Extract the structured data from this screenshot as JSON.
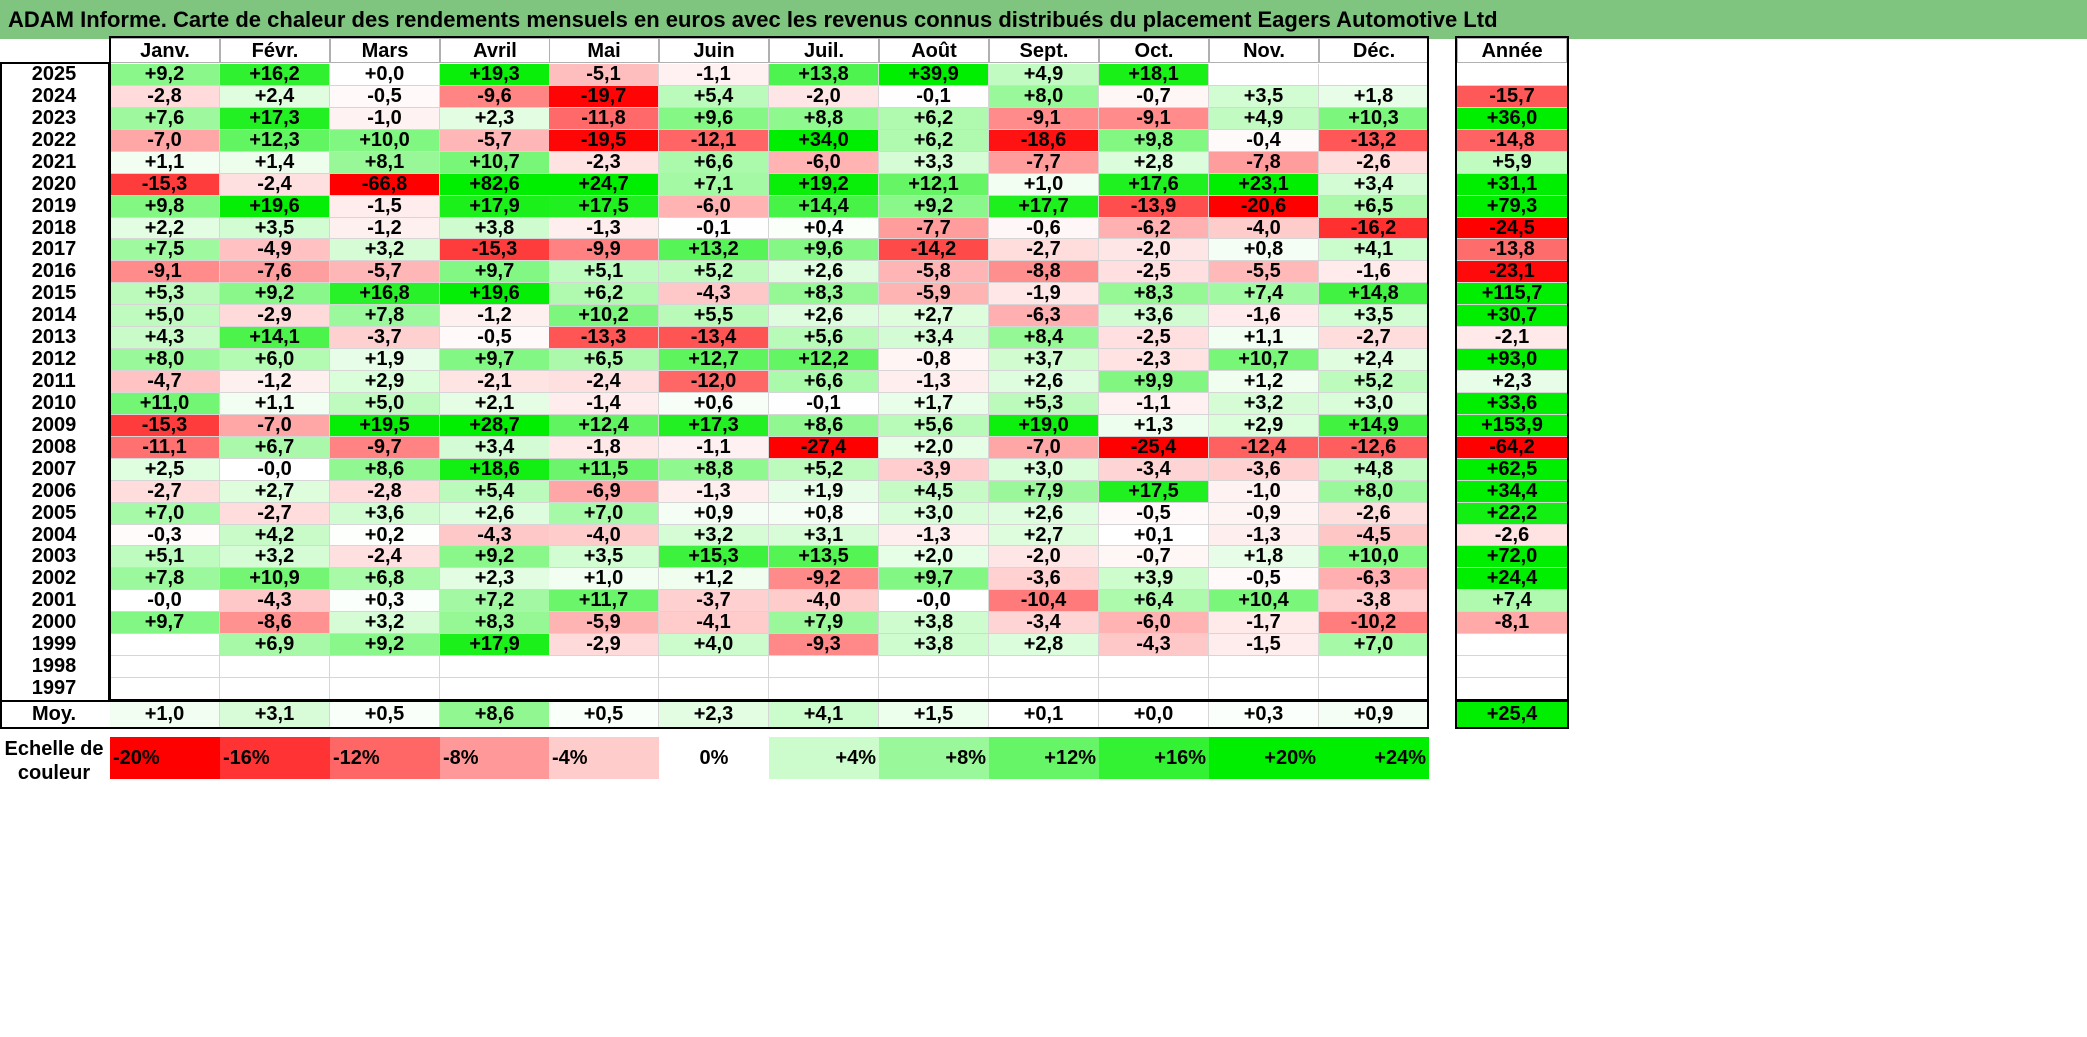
{
  "title": "ADAM Informe. Carte de chaleur des rendements mensuels en euros avec les revenus connus distribués du placement Eagers Automotive Ltd",
  "months": [
    "Janv.",
    "Févr.",
    "Mars",
    "Avril",
    "Mai",
    "Juin",
    "Juil.",
    "Août",
    "Sept.",
    "Oct.",
    "Nov.",
    "Déc."
  ],
  "year_header": "Année",
  "avg_label": "Moy.",
  "scale_label": "Echelle de couleur",
  "colors": {
    "negative_max": "#ff0000",
    "positive_max": "#00ee00",
    "neutral": "#ffffff",
    "title_bg": "#7fc47f"
  },
  "chart_data": {
    "type": "heatmap",
    "title": "ADAM Informe. Carte de chaleur des rendements mensuels en euros avec les revenus connus distribués du placement Eagers Automotive Ltd",
    "columns": [
      "Janv.",
      "Févr.",
      "Mars",
      "Avril",
      "Mai",
      "Juin",
      "Juil.",
      "Août",
      "Sept.",
      "Oct.",
      "Nov.",
      "Déc."
    ],
    "rows": [
      {
        "year": "2025",
        "values": [
          "+9,2",
          "+16,2",
          "+0,0",
          "+19,3",
          "-5,1",
          "-1,1",
          "+13,8",
          "+39,9",
          "+4,9",
          "+18,1",
          "",
          ""
        ],
        "annual": ""
      },
      {
        "year": "2024",
        "values": [
          "-2,8",
          "+2,4",
          "-0,5",
          "-9,6",
          "-19,7",
          "+5,4",
          "-2,0",
          "-0,1",
          "+8,0",
          "-0,7",
          "+3,5",
          "+1,8"
        ],
        "annual": "-15,7"
      },
      {
        "year": "2023",
        "values": [
          "+7,6",
          "+17,3",
          "-1,0",
          "+2,3",
          "-11,8",
          "+9,6",
          "+8,8",
          "+6,2",
          "-9,1",
          "-9,1",
          "+4,9",
          "+10,3"
        ],
        "annual": "+36,0"
      },
      {
        "year": "2022",
        "values": [
          "-7,0",
          "+12,3",
          "+10,0",
          "-5,7",
          "-19,5",
          "-12,1",
          "+34,0",
          "+6,2",
          "-18,6",
          "+9,8",
          "-0,4",
          "-13,2"
        ],
        "annual": "-14,8"
      },
      {
        "year": "2021",
        "values": [
          "+1,1",
          "+1,4",
          "+8,1",
          "+10,7",
          "-2,3",
          "+6,6",
          "-6,0",
          "+3,3",
          "-7,7",
          "+2,8",
          "-7,8",
          "-2,6"
        ],
        "annual": "+5,9"
      },
      {
        "year": "2020",
        "values": [
          "-15,3",
          "-2,4",
          "-66,8",
          "+82,6",
          "+24,7",
          "+7,1",
          "+19,2",
          "+12,1",
          "+1,0",
          "+17,6",
          "+23,1",
          "+3,4"
        ],
        "annual": "+31,1"
      },
      {
        "year": "2019",
        "values": [
          "+9,8",
          "+19,6",
          "-1,5",
          "+17,9",
          "+17,5",
          "-6,0",
          "+14,4",
          "+9,2",
          "+17,7",
          "-13,9",
          "-20,6",
          "+6,5"
        ],
        "annual": "+79,3"
      },
      {
        "year": "2018",
        "values": [
          "+2,2",
          "+3,5",
          "-1,2",
          "+3,8",
          "-1,3",
          "-0,1",
          "+0,4",
          "-7,7",
          "-0,6",
          "-6,2",
          "-4,0",
          "-16,2"
        ],
        "annual": "-24,5"
      },
      {
        "year": "2017",
        "values": [
          "+7,5",
          "-4,9",
          "+3,2",
          "-15,3",
          "-9,9",
          "+13,2",
          "+9,6",
          "-14,2",
          "-2,7",
          "-2,0",
          "+0,8",
          "+4,1"
        ],
        "annual": "-13,8"
      },
      {
        "year": "2016",
        "values": [
          "-9,1",
          "-7,6",
          "-5,7",
          "+9,7",
          "+5,1",
          "+5,2",
          "+2,6",
          "-5,8",
          "-8,8",
          "-2,5",
          "-5,5",
          "-1,6"
        ],
        "annual": "-23,1"
      },
      {
        "year": "2015",
        "values": [
          "+5,3",
          "+9,2",
          "+16,8",
          "+19,6",
          "+6,2",
          "-4,3",
          "+8,3",
          "-5,9",
          "-1,9",
          "+8,3",
          "+7,4",
          "+14,8"
        ],
        "annual": "+115,7"
      },
      {
        "year": "2014",
        "values": [
          "+5,0",
          "-2,9",
          "+7,8",
          "-1,2",
          "+10,2",
          "+5,5",
          "+2,6",
          "+2,7",
          "-6,3",
          "+3,6",
          "-1,6",
          "+3,5"
        ],
        "annual": "+30,7"
      },
      {
        "year": "2013",
        "values": [
          "+4,3",
          "+14,1",
          "-3,7",
          "-0,5",
          "-13,3",
          "-13,4",
          "+5,6",
          "+3,4",
          "+8,4",
          "-2,5",
          "+1,1",
          "-2,7"
        ],
        "annual": "-2,1"
      },
      {
        "year": "2012",
        "values": [
          "+8,0",
          "+6,0",
          "+1,9",
          "+9,7",
          "+6,5",
          "+12,7",
          "+12,2",
          "-0,8",
          "+3,7",
          "-2,3",
          "+10,7",
          "+2,4"
        ],
        "annual": "+93,0"
      },
      {
        "year": "2011",
        "values": [
          "-4,7",
          "-1,2",
          "+2,9",
          "-2,1",
          "-2,4",
          "-12,0",
          "+6,6",
          "-1,3",
          "+2,6",
          "+9,9",
          "+1,2",
          "+5,2"
        ],
        "annual": "+2,3"
      },
      {
        "year": "2010",
        "values": [
          "+11,0",
          "+1,1",
          "+5,0",
          "+2,1",
          "-1,4",
          "+0,6",
          "-0,1",
          "+1,7",
          "+5,3",
          "-1,1",
          "+3,2",
          "+3,0"
        ],
        "annual": "+33,6"
      },
      {
        "year": "2009",
        "values": [
          "-15,3",
          "-7,0",
          "+19,5",
          "+28,7",
          "+12,4",
          "+17,3",
          "+8,6",
          "+5,6",
          "+19,0",
          "+1,3",
          "+2,9",
          "+14,9"
        ],
        "annual": "+153,9"
      },
      {
        "year": "2008",
        "values": [
          "-11,1",
          "+6,7",
          "-9,7",
          "+3,4",
          "-1,8",
          "-1,1",
          "-27,4",
          "+2,0",
          "-7,0",
          "-25,4",
          "-12,4",
          "-12,6"
        ],
        "annual": "-64,2"
      },
      {
        "year": "2007",
        "values": [
          "+2,5",
          "-0,0",
          "+8,6",
          "+18,6",
          "+11,5",
          "+8,8",
          "+5,2",
          "-3,9",
          "+3,0",
          "-3,4",
          "-3,6",
          "+4,8"
        ],
        "annual": "+62,5"
      },
      {
        "year": "2006",
        "values": [
          "-2,7",
          "+2,7",
          "-2,8",
          "+5,4",
          "-6,9",
          "-1,3",
          "+1,9",
          "+4,5",
          "+7,9",
          "+17,5",
          "-1,0",
          "+8,0"
        ],
        "annual": "+34,4"
      },
      {
        "year": "2005",
        "values": [
          "+7,0",
          "-2,7",
          "+3,6",
          "+2,6",
          "+7,0",
          "+0,9",
          "+0,8",
          "+3,0",
          "+2,6",
          "-0,5",
          "-0,9",
          "-2,6"
        ],
        "annual": "+22,2"
      },
      {
        "year": "2004",
        "values": [
          "-0,3",
          "+4,2",
          "+0,2",
          "-4,3",
          "-4,0",
          "+3,2",
          "+3,1",
          "-1,3",
          "+2,7",
          "+0,1",
          "-1,3",
          "-4,5"
        ],
        "annual": "-2,6"
      },
      {
        "year": "2003",
        "values": [
          "+5,1",
          "+3,2",
          "-2,4",
          "+9,2",
          "+3,5",
          "+15,3",
          "+13,5",
          "+2,0",
          "-2,0",
          "-0,7",
          "+1,8",
          "+10,0"
        ],
        "annual": "+72,0"
      },
      {
        "year": "2002",
        "values": [
          "+7,8",
          "+10,9",
          "+6,8",
          "+2,3",
          "+1,0",
          "+1,2",
          "-9,2",
          "+9,7",
          "-3,6",
          "+3,9",
          "-0,5",
          "-6,3"
        ],
        "annual": "+24,4"
      },
      {
        "year": "2001",
        "values": [
          "-0,0",
          "-4,3",
          "+0,3",
          "+7,2",
          "+11,7",
          "-3,7",
          "-4,0",
          "-0,0",
          "-10,4",
          "+6,4",
          "+10,4",
          "-3,8"
        ],
        "annual": "+7,4"
      },
      {
        "year": "2000",
        "values": [
          "+9,7",
          "-8,6",
          "+3,2",
          "+8,3",
          "-5,9",
          "-4,1",
          "+7,9",
          "+3,8",
          "-3,4",
          "-6,0",
          "-1,7",
          "-10,2"
        ],
        "annual": "-8,1"
      },
      {
        "year": "1999",
        "values": [
          "",
          "+6,9",
          "+9,2",
          "+17,9",
          "-2,9",
          "+4,0",
          "-9,3",
          "+3,8",
          "+2,8",
          "-4,3",
          "-1,5",
          "+7,0"
        ],
        "annual": ""
      },
      {
        "year": "1998",
        "values": [
          "",
          "",
          "",
          "",
          "",
          "",
          "",
          "",
          "",
          "",
          "",
          ""
        ],
        "annual": ""
      },
      {
        "year": "1997",
        "values": [
          "",
          "",
          "",
          "",
          "",
          "",
          "",
          "",
          "",
          "",
          "",
          ""
        ],
        "annual": ""
      }
    ],
    "average": {
      "values": [
        "+1,0",
        "+3,1",
        "+0,5",
        "+8,6",
        "+0,5",
        "+2,3",
        "+4,1",
        "+1,5",
        "+0,1",
        "+0,0",
        "+0,3",
        "+0,9"
      ],
      "annual": "+25,4"
    },
    "scale": [
      "-20%",
      "-16%",
      "-12%",
      "-8%",
      "-4%",
      "0%",
      "+4%",
      "+8%",
      "+12%",
      "+16%",
      "+20%",
      "+24%"
    ]
  }
}
